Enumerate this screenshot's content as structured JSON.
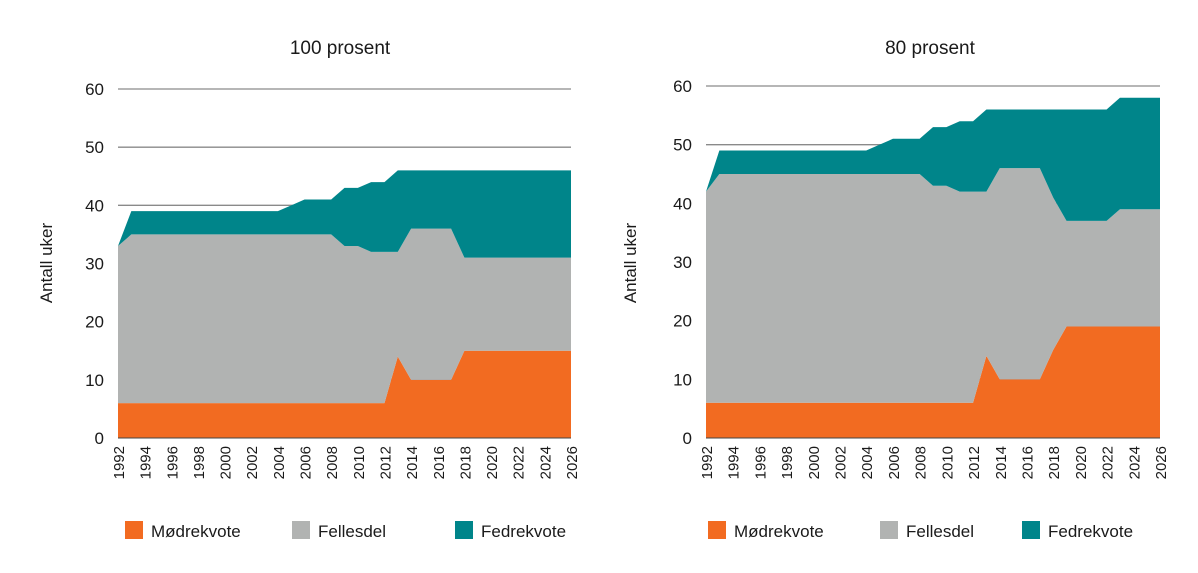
{
  "chart_data": [
    {
      "type": "area",
      "stacked": true,
      "title": "100 prosent",
      "ylabel": "Antall uker",
      "xlabel": "",
      "ylim": [
        0,
        60
      ],
      "yticks": [
        0,
        10,
        20,
        30,
        40,
        50,
        60
      ],
      "x": [
        1992,
        1993,
        1994,
        1995,
        1996,
        1997,
        1998,
        1999,
        2000,
        2001,
        2002,
        2003,
        2004,
        2005,
        2006,
        2007,
        2008,
        2009,
        2010,
        2011,
        2012,
        2013,
        2014,
        2015,
        2016,
        2017,
        2018,
        2019,
        2020,
        2021,
        2022,
        2023,
        2024,
        2025,
        2026
      ],
      "xticks": [
        "1992",
        "1994",
        "1996",
        "1998",
        "2000",
        "2002",
        "2004",
        "2006",
        "2008",
        "2010",
        "2012",
        "2014",
        "2016",
        "2018",
        "2020",
        "2022",
        "2024",
        "2026"
      ],
      "legend_position": "bottom",
      "grid": true,
      "series": [
        {
          "name": "Mødrekvote",
          "color": "#f26b21",
          "values": [
            6,
            6,
            6,
            6,
            6,
            6,
            6,
            6,
            6,
            6,
            6,
            6,
            6,
            6,
            6,
            6,
            6,
            6,
            6,
            6,
            6,
            14,
            10,
            10,
            10,
            10,
            15,
            15,
            15,
            15,
            15,
            15,
            15,
            15,
            15
          ]
        },
        {
          "name": "Fellesdel",
          "color": "#b1b3b2",
          "values": [
            27,
            29,
            29,
            29,
            29,
            29,
            29,
            29,
            29,
            29,
            29,
            29,
            29,
            29,
            29,
            29,
            29,
            27,
            27,
            26,
            26,
            18,
            26,
            26,
            26,
            26,
            16,
            16,
            16,
            16,
            16,
            16,
            16,
            16,
            16
          ]
        },
        {
          "name": "Fedrekvote",
          "color": "#00858a",
          "values": [
            0,
            4,
            4,
            4,
            4,
            4,
            4,
            4,
            4,
            4,
            4,
            4,
            4,
            5,
            6,
            6,
            6,
            10,
            10,
            12,
            12,
            14,
            10,
            10,
            10,
            10,
            15,
            15,
            15,
            15,
            15,
            15,
            15,
            15,
            15
          ]
        }
      ]
    },
    {
      "type": "area",
      "stacked": true,
      "title": "80 prosent",
      "ylabel": "Antall uker",
      "xlabel": "",
      "ylim": [
        0,
        60
      ],
      "yticks": [
        0,
        10,
        20,
        30,
        40,
        50,
        60
      ],
      "x": [
        1992,
        1993,
        1994,
        1995,
        1996,
        1997,
        1998,
        1999,
        2000,
        2001,
        2002,
        2003,
        2004,
        2005,
        2006,
        2007,
        2008,
        2009,
        2010,
        2011,
        2012,
        2013,
        2014,
        2015,
        2016,
        2017,
        2018,
        2019,
        2020,
        2021,
        2022,
        2023,
        2024,
        2025,
        2026
      ],
      "xticks": [
        "1992",
        "1994",
        "1996",
        "1998",
        "2000",
        "2002",
        "2004",
        "2006",
        "2008",
        "2010",
        "2012",
        "2014",
        "2016",
        "2018",
        "2020",
        "2022",
        "2024",
        "2026"
      ],
      "legend_position": "bottom",
      "grid": true,
      "series": [
        {
          "name": "Mødrekvote",
          "color": "#f26b21",
          "values": [
            6,
            6,
            6,
            6,
            6,
            6,
            6,
            6,
            6,
            6,
            6,
            6,
            6,
            6,
            6,
            6,
            6,
            6,
            6,
            6,
            6,
            14,
            10,
            10,
            10,
            10,
            15,
            19,
            19,
            19,
            19,
            19,
            19,
            19,
            19
          ]
        },
        {
          "name": "Fellesdel",
          "color": "#b1b3b2",
          "values": [
            36,
            39,
            39,
            39,
            39,
            39,
            39,
            39,
            39,
            39,
            39,
            39,
            39,
            39,
            39,
            39,
            39,
            37,
            37,
            36,
            36,
            28,
            36,
            36,
            36,
            36,
            26,
            18,
            18,
            18,
            18,
            20,
            20,
            20,
            20
          ]
        },
        {
          "name": "Fedrekvote",
          "color": "#00858a",
          "values": [
            0,
            4,
            4,
            4,
            4,
            4,
            4,
            4,
            4,
            4,
            4,
            4,
            4,
            5,
            6,
            6,
            6,
            10,
            10,
            12,
            12,
            14,
            10,
            10,
            10,
            10,
            15,
            19,
            19,
            19,
            19,
            19,
            19,
            19,
            19
          ]
        }
      ]
    }
  ]
}
